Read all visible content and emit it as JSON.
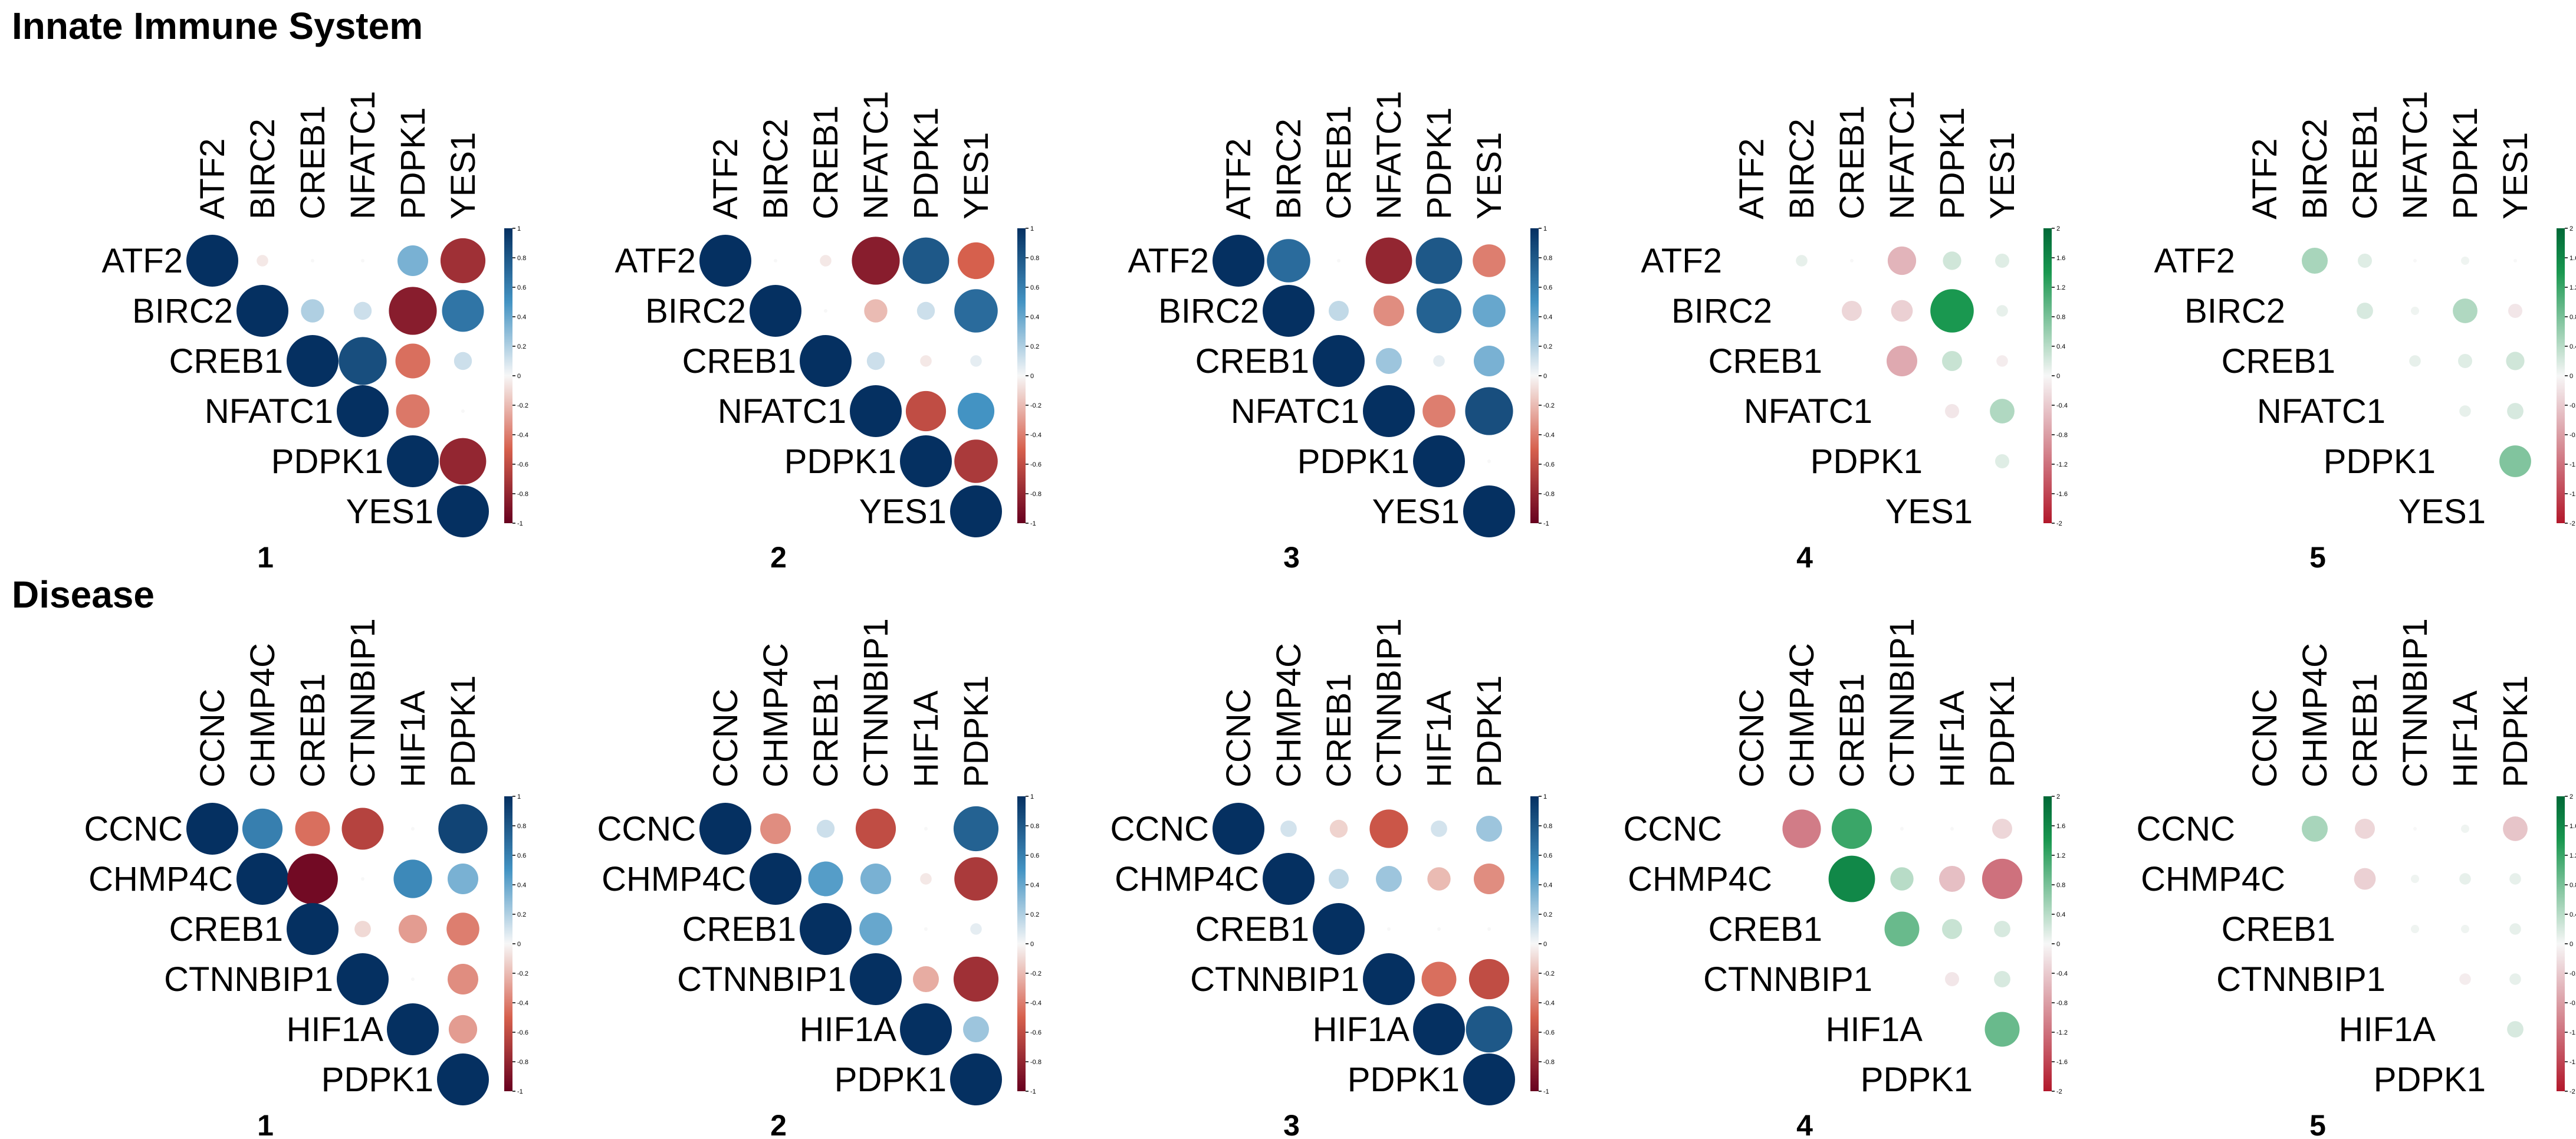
{
  "colors": {
    "corr_neg": "#67001f",
    "corr_mid_neg": "#d6604d",
    "corr_zero": "#f7f7f7",
    "corr_mid_pos": "#4393c3",
    "corr_pos": "#053061",
    "diff_neg": "#b2182b",
    "diff_pos": "#1a9850",
    "diff_pos_dark": "#006837"
  },
  "sections": [
    {
      "title": "Innate Immune System"
    },
    {
      "title": "Disease"
    }
  ],
  "chart_data": [
    {
      "type": "heatmap",
      "section": "Innate Immune System",
      "panel_label": "1",
      "variables": [
        "ATF2",
        "BIRC2",
        "CREB1",
        "NFATC1",
        "PDPK1",
        "YES1"
      ],
      "color_scale": "blue-red",
      "legend_ticks": [
        "1",
        "0.8",
        "0.6",
        "0.4",
        "0.2",
        "0",
        "-0.2",
        "-0.4",
        "-0.6",
        "-0.8",
        "-1"
      ],
      "vmin": -1,
      "vmax": 1,
      "matrix": [
        [
          1.0,
          -0.05,
          0.0,
          0.0,
          0.35,
          -0.75
        ],
        [
          null,
          1.0,
          0.2,
          0.12,
          -0.85,
          0.65
        ],
        [
          null,
          null,
          1.0,
          0.85,
          -0.45,
          0.12
        ],
        [
          null,
          null,
          null,
          1.0,
          -0.42,
          0.0
        ],
        [
          null,
          null,
          null,
          null,
          1.0,
          -0.8
        ],
        [
          null,
          null,
          null,
          null,
          null,
          1.0
        ]
      ]
    },
    {
      "type": "heatmap",
      "section": "Innate Immune System",
      "panel_label": "2",
      "variables": [
        "ATF2",
        "BIRC2",
        "CREB1",
        "NFATC1",
        "PDPK1",
        "YES1"
      ],
      "color_scale": "blue-red",
      "legend_ticks": [
        "1",
        "0.8",
        "0.6",
        "0.4",
        "0.2",
        "0",
        "-0.2",
        "-0.4",
        "-0.6",
        "-0.8",
        "-1"
      ],
      "vmin": -1,
      "vmax": 1,
      "matrix": [
        [
          1.0,
          0.0,
          -0.05,
          -0.85,
          0.8,
          -0.5
        ],
        [
          null,
          1.0,
          0.0,
          -0.2,
          0.12,
          0.7
        ],
        [
          null,
          null,
          1.0,
          0.12,
          -0.05,
          0.05
        ],
        [
          null,
          null,
          null,
          1.0,
          -0.6,
          0.5
        ],
        [
          null,
          null,
          null,
          null,
          1.0,
          -0.7
        ],
        [
          null,
          null,
          null,
          null,
          null,
          1.0
        ]
      ]
    },
    {
      "type": "heatmap",
      "section": "Innate Immune System",
      "panel_label": "3",
      "variables": [
        "ATF2",
        "BIRC2",
        "CREB1",
        "NFATC1",
        "PDPK1",
        "YES1"
      ],
      "color_scale": "blue-red",
      "legend_ticks": [
        "1",
        "0.8",
        "0.6",
        "0.4",
        "0.2",
        "0",
        "-0.2",
        "-0.4",
        "-0.6",
        "-0.8",
        "-1"
      ],
      "vmin": -1,
      "vmax": 1,
      "matrix": [
        [
          1.0,
          0.7,
          0.0,
          -0.8,
          0.8,
          -0.4
        ],
        [
          null,
          1.0,
          0.15,
          -0.35,
          0.75,
          0.4
        ],
        [
          null,
          null,
          1.0,
          0.25,
          0.05,
          0.35
        ],
        [
          null,
          null,
          null,
          1.0,
          -0.4,
          0.85
        ],
        [
          null,
          null,
          null,
          null,
          1.0,
          0.0
        ],
        [
          null,
          null,
          null,
          null,
          null,
          1.0
        ]
      ]
    },
    {
      "type": "heatmap",
      "section": "Innate Immune System",
      "panel_label": "4",
      "variables": [
        "ATF2",
        "BIRC2",
        "CREB1",
        "NFATC1",
        "PDPK1",
        "YES1"
      ],
      "color_scale": "green-red",
      "legend_ticks": [
        "2",
        "1.6",
        "1.2",
        "0.8",
        "0.4",
        "0",
        "-0.4",
        "-0.8",
        "-1.2",
        "-1.6",
        "-2"
      ],
      "vmin": -2,
      "vmax": 2,
      "matrix": [
        [
          null,
          0.1,
          0.0,
          -0.6,
          0.25,
          0.15
        ],
        [
          null,
          null,
          -0.3,
          -0.35,
          1.4,
          0.1
        ],
        [
          null,
          null,
          null,
          -0.7,
          0.3,
          -0.1
        ],
        [
          null,
          null,
          null,
          null,
          -0.15,
          0.45
        ],
        [
          null,
          null,
          null,
          null,
          null,
          0.15
        ],
        [
          null,
          null,
          null,
          null,
          null,
          null
        ]
      ]
    },
    {
      "type": "heatmap",
      "section": "Innate Immune System",
      "panel_label": "5",
      "variables": [
        "ATF2",
        "BIRC2",
        "CREB1",
        "NFATC1",
        "PDPK1",
        "YES1"
      ],
      "color_scale": "green-red",
      "legend_ticks": [
        "2",
        "1.6",
        "1.2",
        "0.8",
        "0.4",
        "0",
        "-0.4",
        "-0.8",
        "-1.2",
        "-1.6",
        "-2"
      ],
      "vmin": -2,
      "vmax": 2,
      "matrix": [
        [
          null,
          0.5,
          0.15,
          0.0,
          0.05,
          0.0
        ],
        [
          null,
          null,
          0.2,
          0.05,
          0.45,
          -0.15
        ],
        [
          null,
          null,
          null,
          0.1,
          0.15,
          0.25
        ],
        [
          null,
          null,
          null,
          null,
          0.1,
          0.2
        ],
        [
          null,
          null,
          null,
          null,
          null,
          0.75
        ],
        [
          null,
          null,
          null,
          null,
          null,
          null
        ]
      ]
    },
    {
      "type": "heatmap",
      "section": "Disease",
      "panel_label": "1",
      "variables": [
        "CCNC",
        "CHMP4C",
        "CREB1",
        "CTNNBIP1",
        "HIF1A",
        "PDPK1"
      ],
      "color_scale": "blue-red",
      "legend_ticks": [
        "1",
        "0.8",
        "0.6",
        "0.4",
        "0.2",
        "0",
        "-0.2",
        "-0.4",
        "-0.6",
        "-0.8",
        "-1"
      ],
      "vmin": -1,
      "vmax": 1,
      "matrix": [
        [
          1.0,
          0.6,
          -0.45,
          -0.65,
          0.0,
          0.9
        ],
        [
          null,
          1.0,
          -0.95,
          0.0,
          0.55,
          0.35
        ],
        [
          null,
          null,
          1.0,
          -0.1,
          -0.3,
          -0.4
        ],
        [
          null,
          null,
          null,
          1.0,
          0.0,
          -0.35
        ],
        [
          null,
          null,
          null,
          null,
          1.0,
          -0.3
        ],
        [
          null,
          null,
          null,
          null,
          null,
          1.0
        ]
      ]
    },
    {
      "type": "heatmap",
      "section": "Disease",
      "panel_label": "2",
      "variables": [
        "CCNC",
        "CHMP4C",
        "CREB1",
        "CTNNBIP1",
        "HIF1A",
        "PDPK1"
      ],
      "color_scale": "blue-red",
      "legend_ticks": [
        "1",
        "0.8",
        "0.6",
        "0.4",
        "0.2",
        "0",
        "-0.2",
        "-0.4",
        "-0.6",
        "-0.8",
        "-1"
      ],
      "vmin": -1,
      "vmax": 1,
      "matrix": [
        [
          1.0,
          -0.35,
          0.12,
          -0.6,
          0.0,
          0.75
        ],
        [
          null,
          1.0,
          0.45,
          0.35,
          -0.05,
          -0.7
        ],
        [
          null,
          null,
          1.0,
          0.4,
          0.0,
          0.05
        ],
        [
          null,
          null,
          null,
          1.0,
          -0.25,
          -0.75
        ],
        [
          null,
          null,
          null,
          null,
          1.0,
          0.25
        ],
        [
          null,
          null,
          null,
          null,
          null,
          1.0
        ]
      ]
    },
    {
      "type": "heatmap",
      "section": "Disease",
      "panel_label": "3",
      "variables": [
        "CCNC",
        "CHMP4C",
        "CREB1",
        "CTNNBIP1",
        "HIF1A",
        "PDPK1"
      ],
      "color_scale": "blue-red",
      "legend_ticks": [
        "1",
        "0.8",
        "0.6",
        "0.4",
        "0.2",
        "0",
        "-0.2",
        "-0.4",
        "-0.6",
        "-0.8",
        "-1"
      ],
      "vmin": -1,
      "vmax": 1,
      "matrix": [
        [
          1.0,
          0.1,
          -0.12,
          -0.55,
          0.1,
          0.25
        ],
        [
          null,
          1.0,
          0.15,
          0.25,
          -0.2,
          -0.35
        ],
        [
          null,
          null,
          1.0,
          0.0,
          0.0,
          0.0
        ],
        [
          null,
          null,
          null,
          1.0,
          -0.45,
          -0.6
        ],
        [
          null,
          null,
          null,
          null,
          1.0,
          0.8
        ],
        [
          null,
          null,
          null,
          null,
          null,
          1.0
        ]
      ]
    },
    {
      "type": "heatmap",
      "section": "Disease",
      "panel_label": "4",
      "variables": [
        "CCNC",
        "CHMP4C",
        "CREB1",
        "CTNNBIP1",
        "HIF1A",
        "PDPK1"
      ],
      "color_scale": "green-red",
      "legend_ticks": [
        "2",
        "1.6",
        "1.2",
        "0.8",
        "0.4",
        "0",
        "-0.4",
        "-0.8",
        "-1.2",
        "-1.6",
        "-2"
      ],
      "vmin": -2,
      "vmax": 2,
      "matrix": [
        [
          null,
          -1.1,
          1.2,
          0.0,
          0.0,
          -0.3
        ],
        [
          null,
          null,
          1.6,
          0.4,
          -0.5,
          -1.2
        ],
        [
          null,
          null,
          null,
          0.9,
          0.3,
          0.2
        ],
        [
          null,
          null,
          null,
          null,
          -0.15,
          0.2
        ],
        [
          null,
          null,
          null,
          null,
          null,
          0.9
        ],
        [
          null,
          null,
          null,
          null,
          null,
          null
        ]
      ]
    },
    {
      "type": "heatmap",
      "section": "Disease",
      "panel_label": "5",
      "variables": [
        "CCNC",
        "CHMP4C",
        "CREB1",
        "CTNNBIP1",
        "HIF1A",
        "PDPK1"
      ],
      "color_scale": "green-red",
      "legend_ticks": [
        "2",
        "1.6",
        "1.2",
        "0.8",
        "0.4",
        "0",
        "-0.4",
        "-0.8",
        "-1.2",
        "-1.6",
        "-2"
      ],
      "vmin": -2,
      "vmax": 2,
      "matrix": [
        [
          null,
          0.5,
          -0.3,
          0.0,
          0.05,
          -0.45
        ],
        [
          null,
          null,
          -0.35,
          0.05,
          0.1,
          0.1
        ],
        [
          null,
          null,
          null,
          0.05,
          0.05,
          0.1
        ],
        [
          null,
          null,
          null,
          null,
          -0.1,
          0.1
        ],
        [
          null,
          null,
          null,
          null,
          null,
          0.2
        ],
        [
          null,
          null,
          null,
          null,
          null,
          null
        ]
      ]
    }
  ]
}
